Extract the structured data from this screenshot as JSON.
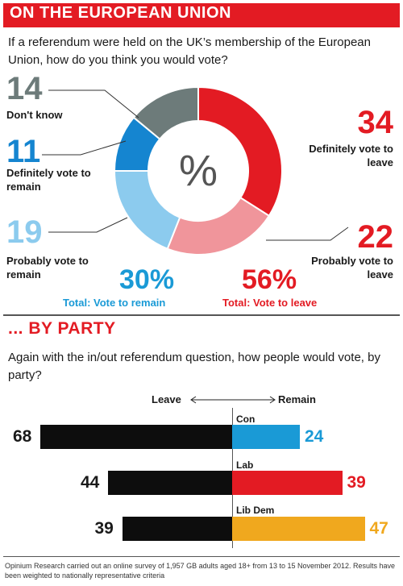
{
  "header": {
    "title": "ON THE EUROPEAN UNION"
  },
  "question": "If a referendum were held on the UK’s membership of the European Union, how do you think you would vote?",
  "donut": {
    "center_symbol": "%",
    "segments": [
      {
        "value": "34",
        "label": "Definitely vote to leave",
        "color": "#e31b23"
      },
      {
        "value": "22",
        "label": "Probably vote to leave",
        "color": "#f0959b"
      },
      {
        "value": "19",
        "label": "Probably vote to remain",
        "color": "#8ccbee"
      },
      {
        "value": "11",
        "label": "Definitely vote to remain",
        "color": "#1585d0"
      },
      {
        "value": "14",
        "label": "Don't know",
        "color": "#6d7b7a"
      }
    ],
    "total_remain": {
      "pct": "30%",
      "label": "Total: Vote to remain",
      "color": "#1a9ad6"
    },
    "total_leave": {
      "pct": "56%",
      "label": "Total: Vote to leave",
      "color": "#e31b23"
    }
  },
  "party_section": {
    "title": "... BY PARTY",
    "question": "Again with the in/out referendum question, how people would vote, by party?",
    "leave_label": "Leave",
    "remain_label": "Remain"
  },
  "chart_data": [
    {
      "type": "pie",
      "categories": [
        "Definitely vote to leave",
        "Probably vote to leave",
        "Probably vote to remain",
        "Definitely vote to remain",
        "Don't know"
      ],
      "values": [
        34,
        22,
        19,
        11,
        14
      ],
      "colors": [
        "#e31b23",
        "#f0959b",
        "#8ccbee",
        "#1585d0",
        "#6d7b7a"
      ]
    },
    {
      "type": "bar",
      "categories": [
        "Con",
        "Lab",
        "Lib Dem"
      ],
      "series": [
        {
          "name": "Leave",
          "values": [
            68,
            44,
            39
          ],
          "color": "#0d0d0d"
        },
        {
          "name": "Remain",
          "values": [
            24,
            39,
            47
          ],
          "color_by_category": [
            "#1a9ad6",
            "#e31b23",
            "#f0a81e"
          ]
        }
      ],
      "party_colors": [
        "#1a9ad6",
        "#e31b23",
        "#f0a81e"
      ]
    }
  ],
  "footnote": "Opinium Research carried out an online survey of 1,957 GB adults aged 18+ from 13 to 15 November 2012. Results have been weighted to nationally representative criteria"
}
